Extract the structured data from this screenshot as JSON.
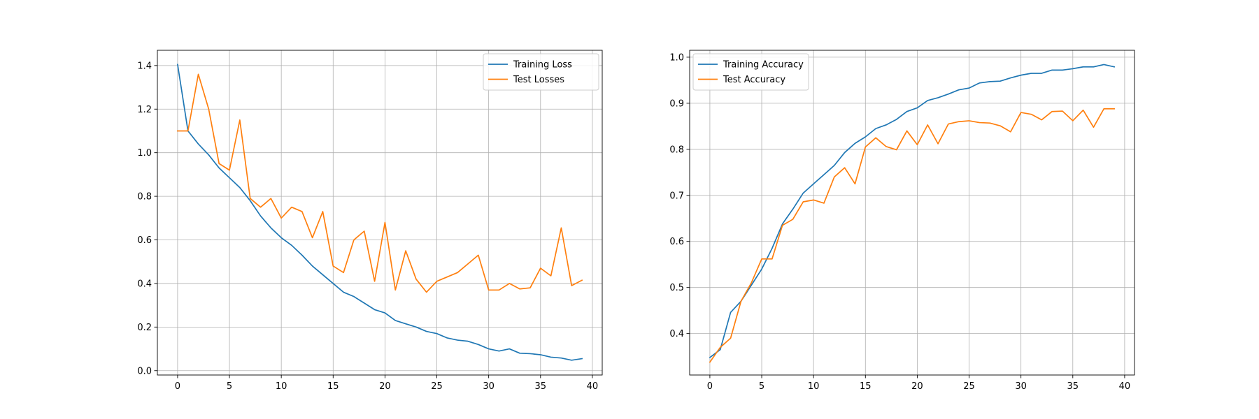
{
  "chart_data": [
    {
      "type": "line",
      "title": "",
      "xlabel": "",
      "ylabel": "",
      "x": [
        0,
        1,
        2,
        3,
        4,
        5,
        6,
        7,
        8,
        9,
        10,
        11,
        12,
        13,
        14,
        15,
        16,
        17,
        18,
        19,
        20,
        21,
        22,
        23,
        24,
        25,
        26,
        27,
        28,
        29,
        30,
        31,
        32,
        33,
        34,
        35,
        36,
        37,
        38,
        39
      ],
      "xlim": [
        -1.95,
        40.95
      ],
      "ylim": [
        -0.02,
        1.47
      ],
      "xticks": [
        0,
        5,
        10,
        15,
        20,
        25,
        30,
        35,
        40
      ],
      "xtick_labels": [
        "0",
        "5",
        "10",
        "15",
        "20",
        "25",
        "30",
        "35",
        "40"
      ],
      "yticks": [
        0.0,
        0.2,
        0.4,
        0.6,
        0.8,
        1.0,
        1.2,
        1.4
      ],
      "ytick_labels": [
        "0.0",
        "0.2",
        "0.4",
        "0.6",
        "0.8",
        "1.0",
        "1.2",
        "1.4"
      ],
      "grid": true,
      "legend_position": "top-right",
      "series": [
        {
          "name": "Training Loss",
          "color": "#1f77b4",
          "values": [
            1.405,
            1.1,
            1.04,
            0.99,
            0.93,
            0.885,
            0.84,
            0.78,
            0.71,
            0.655,
            0.61,
            0.575,
            0.53,
            0.48,
            0.44,
            0.4,
            0.36,
            0.34,
            0.31,
            0.28,
            0.265,
            0.23,
            0.215,
            0.2,
            0.18,
            0.17,
            0.15,
            0.14,
            0.135,
            0.12,
            0.1,
            0.09,
            0.1,
            0.08,
            0.078,
            0.073,
            0.062,
            0.058,
            0.048,
            0.055
          ]
        },
        {
          "name": "Test Losses",
          "color": "#ff7f0e",
          "values": [
            1.1,
            1.1,
            1.36,
            1.2,
            0.95,
            0.92,
            1.15,
            0.79,
            0.75,
            0.79,
            0.7,
            0.75,
            0.73,
            0.61,
            0.73,
            0.48,
            0.45,
            0.6,
            0.64,
            0.41,
            0.68,
            0.37,
            0.55,
            0.42,
            0.36,
            0.41,
            0.43,
            0.45,
            0.49,
            0.53,
            0.37,
            0.37,
            0.4,
            0.375,
            0.38,
            0.47,
            0.435,
            0.655,
            0.39,
            0.415
          ]
        }
      ]
    },
    {
      "type": "line",
      "title": "",
      "xlabel": "",
      "ylabel": "",
      "x": [
        0,
        1,
        2,
        3,
        4,
        5,
        6,
        7,
        8,
        9,
        10,
        11,
        12,
        13,
        14,
        15,
        16,
        17,
        18,
        19,
        20,
        21,
        22,
        23,
        24,
        25,
        26,
        27,
        28,
        29,
        30,
        31,
        32,
        33,
        34,
        35,
        36,
        37,
        38,
        39
      ],
      "xlim": [
        -1.95,
        40.95
      ],
      "ylim": [
        0.31,
        1.015
      ],
      "xticks": [
        0,
        5,
        10,
        15,
        20,
        25,
        30,
        35,
        40
      ],
      "xtick_labels": [
        "0",
        "5",
        "10",
        "15",
        "20",
        "25",
        "30",
        "35",
        "40"
      ],
      "yticks": [
        0.4,
        0.5,
        0.6,
        0.7,
        0.8,
        0.9,
        1.0
      ],
      "ytick_labels": [
        "0.4",
        "0.5",
        "0.6",
        "0.7",
        "0.8",
        "0.9",
        "1.0"
      ],
      "grid": true,
      "legend_position": "top-left",
      "series": [
        {
          "name": "Training Accuracy",
          "color": "#1f77b4",
          "values": [
            0.348,
            0.365,
            0.446,
            0.47,
            0.505,
            0.54,
            0.585,
            0.638,
            0.67,
            0.705,
            0.725,
            0.745,
            0.765,
            0.793,
            0.813,
            0.827,
            0.845,
            0.853,
            0.865,
            0.882,
            0.89,
            0.906,
            0.912,
            0.92,
            0.929,
            0.933,
            0.944,
            0.947,
            0.948,
            0.955,
            0.961,
            0.965,
            0.965,
            0.972,
            0.972,
            0.975,
            0.979,
            0.979,
            0.984,
            0.979
          ]
        },
        {
          "name": "Test Accuracy",
          "color": "#ff7f0e",
          "values": [
            0.338,
            0.37,
            0.39,
            0.47,
            0.51,
            0.562,
            0.562,
            0.635,
            0.648,
            0.686,
            0.69,
            0.683,
            0.74,
            0.76,
            0.725,
            0.805,
            0.825,
            0.806,
            0.799,
            0.84,
            0.81,
            0.853,
            0.812,
            0.855,
            0.86,
            0.862,
            0.858,
            0.857,
            0.851,
            0.838,
            0.88,
            0.876,
            0.864,
            0.882,
            0.883,
            0.862,
            0.885,
            0.848,
            0.888,
            0.888
          ]
        }
      ]
    }
  ]
}
